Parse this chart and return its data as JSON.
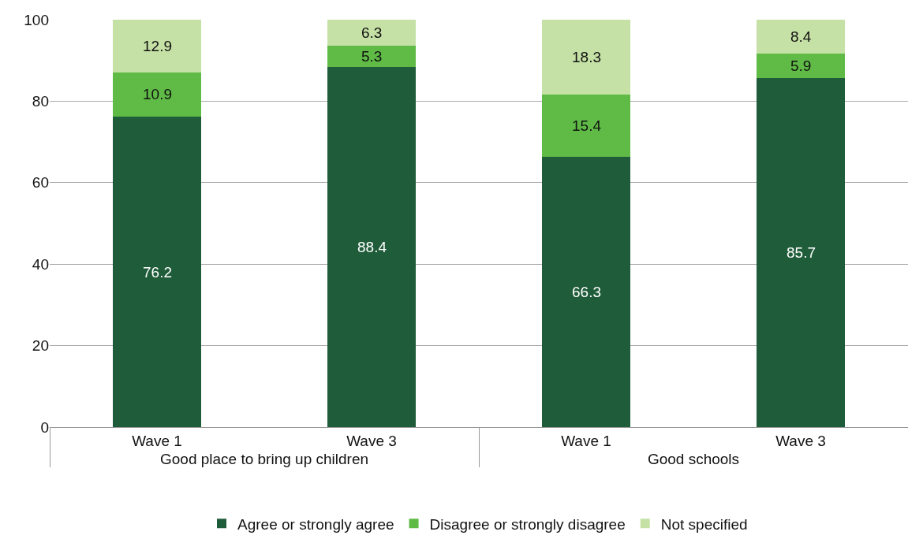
{
  "chart_data": {
    "type": "bar",
    "stacked": true,
    "categories": [
      "Wave 1",
      "Wave 3",
      "Wave 1",
      "Wave 3"
    ],
    "annotations": [
      "Good place to bring up children",
      "Good schools"
    ],
    "series": [
      {
        "name": "Agree or strongly agree",
        "color": "#1f5c3a",
        "values": [
          76.2,
          88.4,
          66.3,
          85.7
        ]
      },
      {
        "name": "Disagree or strongly disagree",
        "color": "#5fbb46",
        "values": [
          10.9,
          5.3,
          15.4,
          5.9
        ]
      },
      {
        "name": "Not specified",
        "color": "#c5e1a5",
        "values": [
          12.9,
          6.3,
          18.3,
          8.4
        ]
      }
    ],
    "ylim": [
      0,
      100
    ],
    "yticks": [
      0,
      20,
      40,
      60,
      80,
      100
    ],
    "grid": "y",
    "legend": "bottom",
    "data_labels": true
  }
}
